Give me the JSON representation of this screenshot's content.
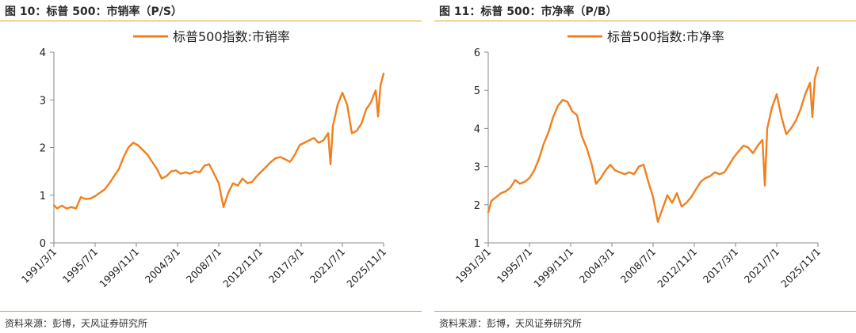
{
  "colors": {
    "series": "#f0801e",
    "accent_rule": "#e39a2a"
  },
  "figures": [
    {
      "title": "图 10：标普 500：市销率（P/S）",
      "source": "资料来源：彭博，天风证券研究所"
    },
    {
      "title": "图 11：标普 500：市净率（P/B）",
      "source": "资料来源：彭博，天风证券研究所"
    }
  ],
  "chart_data": [
    {
      "type": "line",
      "series": [
        {
          "name": "标普500指数:市销率"
        }
      ],
      "x_ticks": [
        "1991/3/1",
        "1995/7/1",
        "1999/11/1",
        "2004/3/1",
        "2008/7/1",
        "2012/11/1",
        "2017/3/1",
        "2021/7/1",
        "2025/11/1"
      ],
      "y_ticks": [
        "0",
        "1",
        "2",
        "3",
        "4"
      ],
      "ylim": [
        0,
        4
      ],
      "xlim": [
        1991.17,
        2025.83
      ],
      "x": [
        1991.17,
        1991.5,
        1992.0,
        1992.5,
        1993.0,
        1993.5,
        1994.0,
        1994.5,
        1995.0,
        1995.5,
        1996.0,
        1996.5,
        1997.0,
        1997.5,
        1998.0,
        1998.5,
        1999.0,
        1999.5,
        2000.0,
        2000.5,
        2001.0,
        2001.5,
        2002.0,
        2002.5,
        2003.0,
        2003.5,
        2004.0,
        2004.5,
        2005.0,
        2005.5,
        2006.0,
        2006.5,
        2007.0,
        2007.5,
        2008.0,
        2008.5,
        2009.0,
        2009.5,
        2010.0,
        2010.5,
        2011.0,
        2011.5,
        2012.0,
        2012.5,
        2013.0,
        2013.5,
        2014.0,
        2014.5,
        2015.0,
        2015.5,
        2016.0,
        2016.5,
        2017.0,
        2017.5,
        2018.0,
        2018.5,
        2019.0,
        2019.5,
        2020.0,
        2020.25,
        2020.5,
        2021.0,
        2021.5,
        2022.0,
        2022.5,
        2023.0,
        2023.5,
        2024.0,
        2024.5,
        2025.0,
        2025.25,
        2025.5,
        2025.83
      ],
      "y": [
        0.79,
        0.72,
        0.78,
        0.72,
        0.75,
        0.72,
        0.96,
        0.92,
        0.93,
        0.98,
        1.05,
        1.12,
        1.25,
        1.4,
        1.55,
        1.8,
        2.0,
        2.1,
        2.05,
        1.95,
        1.85,
        1.7,
        1.55,
        1.35,
        1.4,
        1.5,
        1.52,
        1.45,
        1.48,
        1.45,
        1.5,
        1.48,
        1.62,
        1.65,
        1.45,
        1.25,
        0.75,
        1.05,
        1.25,
        1.2,
        1.35,
        1.25,
        1.28,
        1.4,
        1.5,
        1.6,
        1.7,
        1.78,
        1.8,
        1.75,
        1.7,
        1.85,
        2.05,
        2.1,
        2.15,
        2.2,
        2.1,
        2.15,
        2.3,
        1.65,
        2.45,
        2.9,
        3.15,
        2.9,
        2.3,
        2.35,
        2.5,
        2.8,
        2.95,
        3.2,
        2.65,
        3.3,
        3.55
      ]
    },
    {
      "type": "line",
      "series": [
        {
          "name": "标普500指数:市净率"
        }
      ],
      "x_ticks": [
        "1991/3/1",
        "1995/7/1",
        "1999/11/1",
        "2004/3/1",
        "2008/7/1",
        "2012/11/1",
        "2017/3/1",
        "2021/7/1",
        "2025/11/1"
      ],
      "y_ticks": [
        "1",
        "2",
        "3",
        "4",
        "5",
        "6"
      ],
      "ylim": [
        1,
        6
      ],
      "xlim": [
        1991.17,
        2025.83
      ],
      "x": [
        1991.17,
        1991.5,
        1992.0,
        1992.5,
        1993.0,
        1993.5,
        1994.0,
        1994.5,
        1995.0,
        1995.5,
        1996.0,
        1996.5,
        1997.0,
        1997.5,
        1998.0,
        1998.5,
        1999.0,
        1999.5,
        2000.0,
        2000.5,
        2001.0,
        2001.5,
        2002.0,
        2002.5,
        2003.0,
        2003.5,
        2004.0,
        2004.5,
        2005.0,
        2005.5,
        2006.0,
        2006.5,
        2007.0,
        2007.5,
        2008.0,
        2008.5,
        2009.0,
        2009.5,
        2010.0,
        2010.5,
        2011.0,
        2011.5,
        2012.0,
        2012.5,
        2013.0,
        2013.5,
        2014.0,
        2014.5,
        2015.0,
        2015.5,
        2016.0,
        2016.5,
        2017.0,
        2017.5,
        2018.0,
        2018.5,
        2019.0,
        2019.5,
        2020.0,
        2020.25,
        2020.5,
        2021.0,
        2021.5,
        2022.0,
        2022.5,
        2023.0,
        2023.5,
        2024.0,
        2024.5,
        2025.0,
        2025.25,
        2025.5,
        2025.83
      ],
      "y": [
        1.8,
        2.1,
        2.2,
        2.3,
        2.35,
        2.45,
        2.65,
        2.55,
        2.6,
        2.7,
        2.9,
        3.2,
        3.6,
        3.9,
        4.3,
        4.6,
        4.75,
        4.7,
        4.45,
        4.35,
        3.8,
        3.5,
        3.1,
        2.55,
        2.7,
        2.9,
        3.05,
        2.9,
        2.85,
        2.8,
        2.85,
        2.8,
        3.0,
        3.05,
        2.6,
        2.2,
        1.55,
        1.9,
        2.25,
        2.05,
        2.3,
        1.95,
        2.05,
        2.2,
        2.4,
        2.6,
        2.7,
        2.75,
        2.85,
        2.8,
        2.85,
        3.05,
        3.25,
        3.4,
        3.55,
        3.5,
        3.35,
        3.55,
        3.7,
        2.5,
        4.0,
        4.55,
        4.9,
        4.3,
        3.85,
        4.0,
        4.2,
        4.5,
        4.9,
        5.2,
        4.3,
        5.3,
        5.6
      ]
    }
  ]
}
